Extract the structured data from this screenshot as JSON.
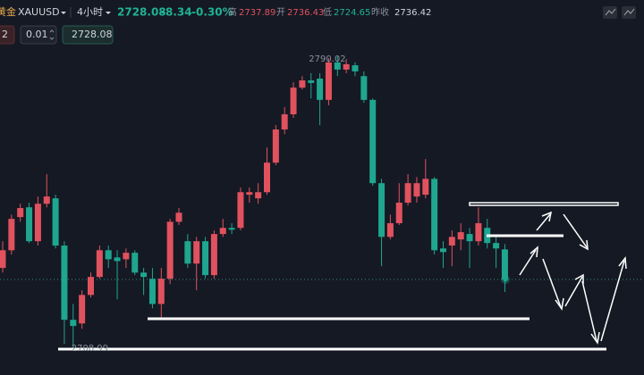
{
  "header": {
    "name": "黄金",
    "symbol": "XAUUSD",
    "interval": "4小时",
    "price": "2728.08",
    "change": "-8.34",
    "change_pct": "-0.30%",
    "high_label": "高",
    "high": "2737.89",
    "open_label": "开",
    "open": "2736.43",
    "low_label": "低",
    "low": "2724.65",
    "prev_label": "昨收",
    "prev": "2736.42"
  },
  "toolbar": {
    "qty": "2",
    "step": "0.01",
    "price": "2728.08"
  },
  "chart_data": {
    "type": "candlestick",
    "up_color": "#e0525e",
    "down_color": "#1fa68f",
    "ylim": [
      2701.6,
      2805.6
    ],
    "open": [
      2731.3,
      2736.2,
      2745.4,
      2748.1,
      2738.7,
      2749.1,
      2750.6,
      2737.5,
      2716.9,
      2715.9,
      2723.8,
      2728.8,
      2736.2,
      2734.2,
      2733.7,
      2735.5,
      2730.0,
      2728.3,
      2721.3,
      2728.3,
      2744.1,
      2738.7,
      2732.5,
      2738.7,
      2729.3,
      2740.7,
      2742.4,
      2742.4,
      2751.6,
      2750.6,
      2752.3,
      2760.5,
      2769.7,
      2773.9,
      2781.3,
      2783.3,
      2783.8,
      2777.9,
      2788.3,
      2786.3,
      2787.5,
      2784.5,
      2777.9,
      2754.8,
      2739.9,
      2743.7,
      2749.4,
      2751.1,
      2751.6,
      2756.0,
      2736.7,
      2737.5,
      2739.2,
      2740.7,
      2738.7,
      2742.4,
      2738.2,
      2736.43
    ],
    "high": [
      2738.7,
      2746.1,
      2749.1,
      2749.4,
      2751.1,
      2757.3,
      2751.6,
      2738.7,
      2721.3,
      2725.1,
      2730.0,
      2737.5,
      2737.5,
      2736.2,
      2736.7,
      2736.2,
      2731.3,
      2731.3,
      2731.3,
      2744.9,
      2747.9,
      2740.7,
      2739.9,
      2739.9,
      2741.7,
      2744.9,
      2743.7,
      2753.6,
      2753.6,
      2754.8,
      2764.7,
      2770.9,
      2775.9,
      2782.8,
      2784.5,
      2785.3,
      2785.3,
      2789.5,
      2790.02,
      2789.2,
      2788.3,
      2785.8,
      2778.3,
      2756.0,
      2746.1,
      2754.8,
      2757.3,
      2756.5,
      2761.5,
      2756.5,
      2738.7,
      2741.7,
      2743.7,
      2742.4,
      2748.1,
      2744.9,
      2739.9,
      2737.89
    ],
    "low": [
      2730.0,
      2735.0,
      2744.1,
      2738.2,
      2737.5,
      2748.1,
      2736.7,
      2710.2,
      2708.99,
      2714.4,
      2723.1,
      2728.3,
      2731.3,
      2722.6,
      2731.3,
      2729.3,
      2723.8,
      2720.1,
      2717.6,
      2726.8,
      2743.2,
      2731.3,
      2725.1,
      2728.3,
      2728.3,
      2739.9,
      2740.7,
      2741.7,
      2749.4,
      2749.1,
      2751.6,
      2759.8,
      2768.4,
      2772.9,
      2780.8,
      2778.3,
      2770.9,
      2776.4,
      2784.5,
      2785.3,
      2784.5,
      2777.1,
      2754.1,
      2731.8,
      2739.2,
      2743.2,
      2748.6,
      2749.4,
      2750.6,
      2735.0,
      2731.3,
      2731.8,
      2736.2,
      2731.3,
      2737.5,
      2736.7,
      2731.3,
      2724.65
    ],
    "close": [
      2736.2,
      2744.9,
      2747.9,
      2738.7,
      2749.1,
      2751.1,
      2737.5,
      2716.9,
      2715.2,
      2723.8,
      2728.8,
      2736.2,
      2733.7,
      2733.2,
      2735.5,
      2730.0,
      2728.8,
      2721.3,
      2728.3,
      2744.1,
      2746.6,
      2732.5,
      2738.7,
      2729.3,
      2740.7,
      2742.4,
      2741.9,
      2752.3,
      2752.3,
      2752.3,
      2760.5,
      2769.7,
      2773.9,
      2781.3,
      2783.3,
      2782.6,
      2777.9,
      2788.3,
      2786.3,
      2787.8,
      2785.8,
      2777.9,
      2754.8,
      2739.9,
      2743.7,
      2749.4,
      2754.8,
      2754.8,
      2756.0,
      2736.2,
      2735.7,
      2739.9,
      2741.2,
      2738.7,
      2743.7,
      2738.2,
      2736.7,
      2728.08
    ],
    "max_label": 2790.02,
    "max_index": 38,
    "min_label": 2708.99,
    "min_index": 8
  }
}
